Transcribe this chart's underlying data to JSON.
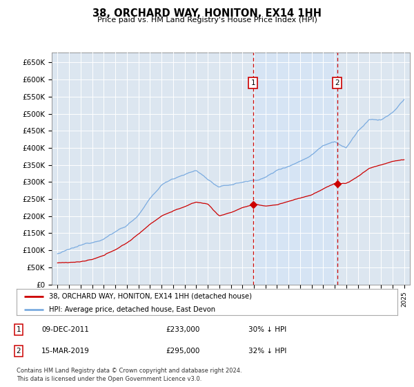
{
  "title": "38, ORCHARD WAY, HONITON, EX14 1HH",
  "subtitle": "Price paid vs. HM Land Registry's House Price Index (HPI)",
  "ylabel_ticks": [
    "£0",
    "£50K",
    "£100K",
    "£150K",
    "£200K",
    "£250K",
    "£300K",
    "£350K",
    "£400K",
    "£450K",
    "£500K",
    "£550K",
    "£600K",
    "£650K"
  ],
  "ylim": [
    0,
    680000
  ],
  "ytick_vals": [
    0,
    50000,
    100000,
    150000,
    200000,
    250000,
    300000,
    350000,
    400000,
    450000,
    500000,
    550000,
    600000,
    650000
  ],
  "hpi_color": "#7aabe0",
  "hpi_fill_color": "#d6e4f5",
  "property_color": "#cc0000",
  "bg_color": "#dce6f0",
  "annotation_box_color": "#cc0000",
  "sale1_x": 2011.92,
  "sale1_price": 233000,
  "sale2_x": 2019.21,
  "sale2_price": 295000,
  "vline_color": "#cc0000",
  "legend_entries": [
    "38, ORCHARD WAY, HONITON, EX14 1HH (detached house)",
    "HPI: Average price, detached house, East Devon"
  ],
  "table_rows": [
    [
      "1",
      "09-DEC-2011",
      "£233,000",
      "30% ↓ HPI"
    ],
    [
      "2",
      "15-MAR-2019",
      "£295,000",
      "32% ↓ HPI"
    ]
  ],
  "footnote": "Contains HM Land Registry data © Crown copyright and database right 2024.\nThis data is licensed under the Open Government Licence v3.0.",
  "xlim": [
    1994.5,
    2025.5
  ],
  "xtick_years": [
    1995,
    1996,
    1997,
    1998,
    1999,
    2000,
    2001,
    2002,
    2003,
    2004,
    2005,
    2006,
    2007,
    2008,
    2009,
    2010,
    2011,
    2012,
    2013,
    2014,
    2015,
    2016,
    2017,
    2018,
    2019,
    2020,
    2021,
    2022,
    2023,
    2024,
    2025
  ],
  "hpi_waypoints_x": [
    1995,
    1996,
    1997,
    1998,
    1999,
    2000,
    2001,
    2002,
    2003,
    2004,
    2005,
    2006,
    2007,
    2008,
    2009,
    2010,
    2011,
    2012,
    2013,
    2014,
    2015,
    2016,
    2017,
    2018,
    2019,
    2020,
    2021,
    2022,
    2023,
    2024,
    2025
  ],
  "hpi_waypoints_y": [
    90000,
    100000,
    110000,
    120000,
    135000,
    155000,
    175000,
    205000,
    250000,
    290000,
    310000,
    325000,
    335000,
    310000,
    285000,
    292000,
    300000,
    305000,
    315000,
    335000,
    350000,
    365000,
    385000,
    415000,
    430000,
    410000,
    460000,
    490000,
    490000,
    510000,
    548000
  ],
  "prop_waypoints_x": [
    1995,
    1996,
    1997,
    1998,
    1999,
    2000,
    2001,
    2002,
    2003,
    2004,
    2005,
    2006,
    2007,
    2008,
    2009,
    2010,
    2011,
    2012,
    2013,
    2014,
    2015,
    2016,
    2017,
    2018,
    2019,
    2020,
    2021,
    2022,
    2023,
    2024,
    2025
  ],
  "prop_waypoints_y": [
    63000,
    65000,
    67000,
    72000,
    82000,
    100000,
    120000,
    145000,
    175000,
    200000,
    215000,
    228000,
    240000,
    235000,
    200000,
    210000,
    225000,
    233000,
    228000,
    232000,
    242000,
    252000,
    262000,
    278000,
    295000,
    295000,
    315000,
    340000,
    350000,
    360000,
    365000
  ]
}
